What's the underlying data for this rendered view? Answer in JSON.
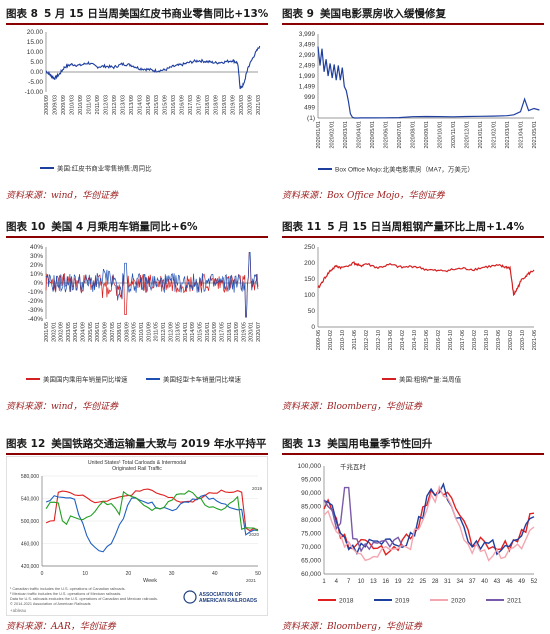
{
  "panels": [
    {
      "label": "图表 8",
      "title": "5 月 15 日当周美国红皮书商业零售同比+13%",
      "source": "资料来源：wind，华创证券",
      "chart_data": {
        "type": "line",
        "ylim": [
          -10,
          20
        ],
        "yticks": [
          "20.00",
          "15.00",
          "10.00",
          "5.00",
          "0.00",
          "-5.00",
          "-10.00"
        ],
        "xticks": [
          "2008/09",
          "2009/03",
          "2009/09",
          "2010/03",
          "2010/09",
          "2011/03",
          "2011/09",
          "2012/03",
          "2012/09",
          "2013/03",
          "2013/09",
          "2014/03",
          "2014/09",
          "2015/03",
          "2015/09",
          "2016/03",
          "2016/09",
          "2017/03",
          "2017/09",
          "2018/03",
          "2018/09",
          "2019/03",
          "2019/09",
          "2020/03",
          "2020/09",
          "2021/03"
        ],
        "series": [
          {
            "name": "美国:红皮书商业零售销售:周同比",
            "color": "#1f3f9f",
            "x": [
              0,
              0.5,
              1,
              1.6,
              2.2,
              3,
              4,
              5,
              6,
              7,
              8,
              9,
              10,
              11,
              12,
              13,
              14,
              15,
              16,
              17,
              18,
              19,
              20,
              21,
              22,
              22.6,
              22.9,
              23.3,
              23.8,
              24.5,
              25.2
            ],
            "y": [
              0.5,
              -1.5,
              -3.2,
              -1.0,
              2.5,
              3.8,
              3.3,
              4.6,
              2.6,
              2.9,
              2.3,
              4.0,
              3.5,
              1.8,
              1.3,
              0.6,
              1.0,
              2.8,
              3.6,
              4.9,
              5.7,
              5.2,
              4.6,
              5.0,
              5.8,
              4.5,
              -8.0,
              -6.5,
              2.0,
              8.0,
              13.0
            ]
          }
        ]
      }
    },
    {
      "label": "图表 9",
      "title": "美国电影票房收入缓慢修复",
      "source": "资料来源：Box Office Mojo，华创证券",
      "chart_data": {
        "type": "line",
        "ylim": [
          -1,
          3999
        ],
        "yticks": [
          "3,999",
          "3,499",
          "2,999",
          "2,499",
          "1,999",
          "1,499",
          "999",
          "499",
          "(1)"
        ],
        "xticks": [
          "2020/01/01",
          "2020/02/01",
          "2020/03/01",
          "2020/04/01",
          "2020/05/01",
          "2020/06/01",
          "2020/07/01",
          "2020/08/01",
          "2020/09/01",
          "2020/10/01",
          "2020/11/01",
          "2020/12/01",
          "2021/01/01",
          "2021/02/01",
          "2021/03/01",
          "2021/04/01",
          "2021/05/01"
        ],
        "series": [
          {
            "name": "Box Office Mojo:北美电影票房（MA7，万美元）",
            "color": "#1f3f9f",
            "x": [
              0,
              0.15,
              0.3,
              0.45,
              0.6,
              0.75,
              0.9,
              1.05,
              1.2,
              1.35,
              1.5,
              1.65,
              1.8,
              1.95,
              2.1,
              2.25,
              2.4,
              2.55,
              2.7,
              2.9,
              3.2,
              4,
              5,
              6,
              7,
              8,
              9,
              10,
              11,
              12,
              13,
              14,
              14.5,
              15,
              15.3,
              15.6,
              16,
              16.4
            ],
            "y": [
              3400,
              2500,
              3300,
              2200,
              2800,
              2000,
              2600,
              1900,
              2550,
              1800,
              2500,
              1800,
              2400,
              1500,
              1300,
              800,
              200,
              30,
              0,
              0,
              5,
              5,
              10,
              20,
              60,
              70,
              65,
              55,
              70,
              80,
              90,
              110,
              150,
              300,
              900,
              350,
              450,
              380
            ]
          }
        ]
      }
    },
    {
      "label": "图表 10",
      "title": "美国 4 月乘用车销量同比+6%",
      "source": "资料来源：wind，华创证券",
      "chart_data": {
        "type": "line",
        "ylim": [
          -40,
          40
        ],
        "yticks": [
          "40%",
          "30%",
          "20%",
          "10%",
          "0%",
          "-10%",
          "-20%",
          "-30%",
          "-40%"
        ],
        "xticks": [
          "2001/05",
          "2002/01",
          "2002/09",
          "2003/05",
          "2004/01",
          "2004/09",
          "2005/05",
          "2006/01",
          "2006/09",
          "2007/05",
          "2008/01",
          "2008/09",
          "2009/05",
          "2010/01",
          "2010/09",
          "2011/05",
          "2012/01",
          "2012/09",
          "2013/05",
          "2014/01",
          "2014/09",
          "2015/05",
          "2016/01",
          "2016/09",
          "2017/05",
          "2018/01",
          "2018/09",
          "2019/05",
          "2020/01",
          "2020/07"
        ],
        "series": [
          {
            "name": "美国国内乘用车销量同比增速",
            "color": "#d42020"
          },
          {
            "name": "美国轻型卡车销量同比增速",
            "color": "#1f4fb0"
          }
        ]
      }
    },
    {
      "label": "图表 11",
      "title": "5 月 15 日当周粗钢产量环比上周+1.4%",
      "source": "资料来源：Bloomberg，华创证券",
      "chart_data": {
        "type": "line",
        "ylim": [
          0,
          250
        ],
        "yticks": [
          "250",
          "200",
          "150",
          "100",
          "50",
          "0"
        ],
        "xticks": [
          "2009-06",
          "2010-02",
          "2010-10",
          "2011-06",
          "2012-02",
          "2012-10",
          "2013-06",
          "2014-02",
          "2014-10",
          "2015-06",
          "2016-02",
          "2016-10",
          "2017-06",
          "2018-02",
          "2018-10",
          "2019-06",
          "2020-02",
          "2020-10",
          "2021-06"
        ],
        "series": [
          {
            "name": "美国:粗钢产量:当周值",
            "color": "#d42020",
            "x": [
              0,
              0.5,
              1,
              1.5,
              2,
              3,
              3.5,
              4,
              5,
              6,
              7,
              8,
              9,
              10,
              11,
              12,
              13,
              14,
              15,
              15.5,
              16,
              16.3,
              16.6,
              17,
              17.5,
              18
            ],
            "y": [
              120,
              150,
              175,
              190,
              185,
              200,
              190,
              198,
              185,
              195,
              186,
              190,
              180,
              175,
              178,
              183,
              180,
              188,
              192,
              188,
              185,
              100,
              120,
              150,
              165,
              178
            ]
          }
        ]
      }
    },
    {
      "label": "图表 12",
      "title": "美国铁路交通运输量大致与 2019 年水平持平",
      "source": "资料来源：AAR，华创证券",
      "inner_title_1": "United States¹ Total Carloads & Intermodal",
      "inner_title_2": "Originated Rail Traffic",
      "inner_xlabel": "Week",
      "footnotes": [
        "¹ Canadian traffic includes the U.S. operations of Canadian railroads.",
        "² Mexican traffic includes the U.S. operations of Mexican railroads.",
        "Data for U.S. railroads excludes the U.S. operations of Canadian and Mexican railroads.",
        "© 2014-2021 Association of American Railroads"
      ],
      "aar_name_1": "ASSOCIATION OF",
      "aar_name_2": "AMERICAN RAILROADS",
      "tableau": "+ableau",
      "chart_data": {
        "type": "line",
        "ylim": [
          350000,
          600000
        ],
        "yticks": [
          "580,000",
          "540,000",
          "500,000",
          "460,000",
          "420,000"
        ],
        "xticks": [
          "0",
          "10",
          "20",
          "30",
          "40",
          "50"
        ],
        "series": [
          {
            "name": "2019",
            "color": "#e02020"
          },
          {
            "name": "2020",
            "color": "#2060c0"
          },
          {
            "name": "2021",
            "color": "#22a022"
          }
        ]
      }
    },
    {
      "label": "图表 13",
      "title": "美国用电量季节性回升",
      "source": "资料来源：Bloomberg，华创证券",
      "chart_data": {
        "type": "line",
        "unit_label": "千兆瓦时",
        "ylim": [
          60000,
          100000
        ],
        "yticks": [
          "100,000",
          "95,000",
          "90,000",
          "85,000",
          "80,000",
          "75,000",
          "70,000",
          "65,000",
          "60,000"
        ],
        "xticks": [
          "1",
          "4",
          "7",
          "10",
          "13",
          "16",
          "19",
          "22",
          "25",
          "28",
          "31",
          "34",
          "37",
          "40",
          "43",
          "46",
          "49",
          "52"
        ],
        "series": [
          {
            "name": "2018",
            "color": "#e02020"
          },
          {
            "name": "2019",
            "color": "#1f3f9f"
          },
          {
            "name": "2020",
            "color": "#f4a6b0"
          },
          {
            "name": "2021",
            "color": "#7a5aa8"
          }
        ]
      }
    }
  ]
}
